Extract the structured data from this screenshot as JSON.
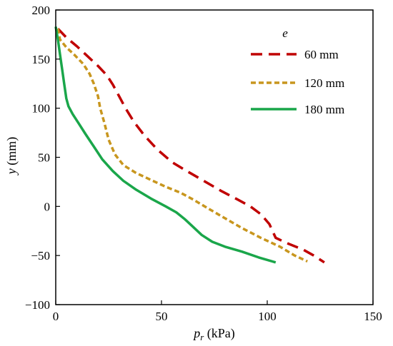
{
  "chart_data": {
    "type": "line",
    "xlabel": {
      "var": "p",
      "sub": "r",
      "unit": " (kPa)"
    },
    "ylabel": {
      "var": "y",
      "unit": " (mm)"
    },
    "xlim": [
      0,
      150
    ],
    "ylim": [
      -100,
      200
    ],
    "xticks": [
      0,
      50,
      100,
      150
    ],
    "yticks": [
      -100,
      -50,
      0,
      50,
      100,
      150,
      200
    ],
    "xtick_labels": [
      "0",
      "50",
      "100",
      "150"
    ],
    "ytick_labels": [
      "−100",
      "−50",
      "0",
      "50",
      "100",
      "150",
      "200"
    ],
    "grid": false,
    "legend": {
      "title": "e",
      "placement": "top-right"
    },
    "series": [
      {
        "name": "60 mm",
        "color": "#c00000",
        "style": "long-dash",
        "points": [
          [
            1,
            181
          ],
          [
            5,
            172
          ],
          [
            10,
            163
          ],
          [
            15,
            153
          ],
          [
            20,
            143
          ],
          [
            24,
            134
          ],
          [
            27,
            124
          ],
          [
            30,
            112
          ],
          [
            33,
            100
          ],
          [
            37,
            86
          ],
          [
            42,
            72
          ],
          [
            48,
            58
          ],
          [
            55,
            45
          ],
          [
            62,
            36
          ],
          [
            70,
            26
          ],
          [
            78,
            16
          ],
          [
            86,
            7
          ],
          [
            92,
            0
          ],
          [
            97,
            -8
          ],
          [
            101,
            -18
          ],
          [
            104,
            -32
          ],
          [
            110,
            -38
          ],
          [
            117,
            -44
          ],
          [
            122,
            -50
          ],
          [
            127,
            -57
          ]
        ]
      },
      {
        "name": "120 mm",
        "color": "#c8961e",
        "style": "short-dash",
        "points": [
          [
            1,
            181
          ],
          [
            2,
            170
          ],
          [
            5,
            162
          ],
          [
            9,
            154
          ],
          [
            13,
            145
          ],
          [
            16,
            135
          ],
          [
            18,
            125
          ],
          [
            20,
            112
          ],
          [
            21,
            100
          ],
          [
            23,
            85
          ],
          [
            25,
            68
          ],
          [
            28,
            53
          ],
          [
            32,
            42
          ],
          [
            38,
            34
          ],
          [
            45,
            27
          ],
          [
            52,
            20
          ],
          [
            59,
            14
          ],
          [
            65,
            7
          ],
          [
            72,
            -2
          ],
          [
            80,
            -12
          ],
          [
            88,
            -22
          ],
          [
            97,
            -32
          ],
          [
            106,
            -41
          ],
          [
            113,
            -50
          ],
          [
            119,
            -56
          ]
        ]
      },
      {
        "name": "180 mm",
        "color": "#1aa64a",
        "style": "solid",
        "points": [
          [
            0,
            183
          ],
          [
            1,
            170
          ],
          [
            2,
            155
          ],
          [
            3,
            140
          ],
          [
            4,
            125
          ],
          [
            5,
            110
          ],
          [
            6,
            102
          ],
          [
            8,
            94
          ],
          [
            11,
            84
          ],
          [
            14,
            74
          ],
          [
            18,
            61
          ],
          [
            22,
            48
          ],
          [
            27,
            36
          ],
          [
            32,
            26
          ],
          [
            38,
            17
          ],
          [
            45,
            8
          ],
          [
            52,
            0
          ],
          [
            57,
            -6
          ],
          [
            61,
            -13
          ],
          [
            65,
            -21
          ],
          [
            69,
            -29
          ],
          [
            74,
            -36
          ],
          [
            80,
            -41
          ],
          [
            88,
            -46
          ],
          [
            96,
            -52
          ],
          [
            104,
            -57
          ]
        ]
      }
    ]
  }
}
